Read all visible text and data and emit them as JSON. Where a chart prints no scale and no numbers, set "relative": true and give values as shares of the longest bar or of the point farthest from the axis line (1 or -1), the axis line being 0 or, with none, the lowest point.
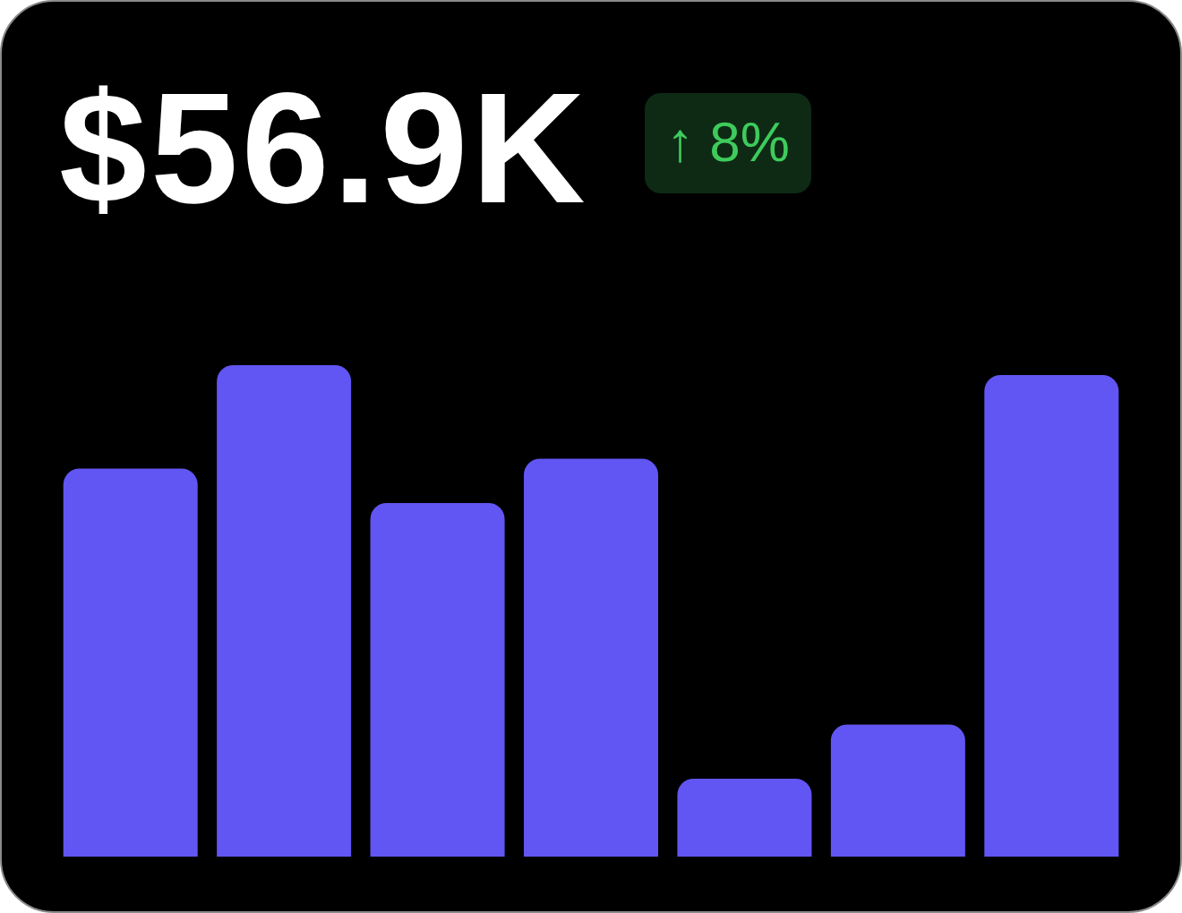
{
  "chart_data": {
    "type": "bar",
    "title": "$56.9K",
    "subtitle": "↑ 8%",
    "categories": [
      null,
      null,
      null,
      null,
      null,
      null,
      null
    ],
    "values": [
      0.79,
      1,
      0.72,
      0.81,
      0.16,
      0.27,
      0.98
    ],
    "color": "#6156f3",
    "relative": true
  }
}
